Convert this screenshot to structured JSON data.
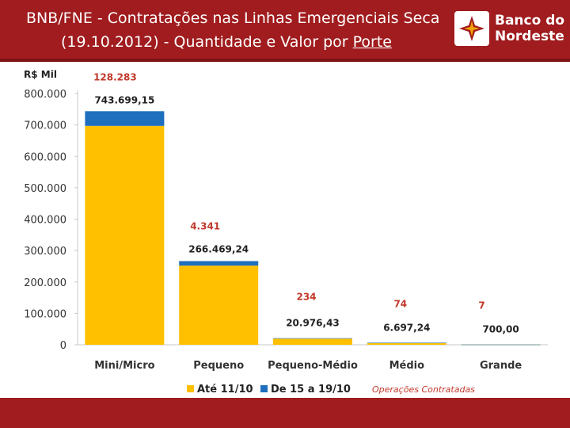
{
  "header": {
    "title_line1": "BNB/FNE - Contratações nas Linhas Emergenciais Seca",
    "title_line2_prefix": "(19.10.2012)  - Quantidade e Valor por ",
    "title_line2_underlined": "Porte",
    "logo_line1": "Banco do",
    "logo_line2": "Nordeste"
  },
  "colors": {
    "brand_red": "#a01c1e",
    "series_1": "#ffc000",
    "series_2": "#1f6fbf",
    "count_label": "#c0392b"
  },
  "note": "Operações Contratadas",
  "chart_data": {
    "type": "bar",
    "stacked": true,
    "title": "BNB/FNE - Contratações nas Linhas Emergenciais Seca (19.10.2012) - Quantidade e Valor por Porte",
    "ylabel": "R$ Mil",
    "xlabel": "",
    "ylim": [
      0,
      800000
    ],
    "yticks": [
      0,
      100000,
      200000,
      300000,
      400000,
      500000,
      600000,
      700000,
      800000
    ],
    "ytick_labels": [
      "0",
      "100.000",
      "200.000",
      "300.000",
      "400.000",
      "500.000",
      "600.000",
      "700.000",
      "800.000"
    ],
    "categories": [
      "Mini/Micro",
      "Pequeno",
      "Pequeno-Médio",
      "Médio",
      "Grande"
    ],
    "series": [
      {
        "name": "Até 11/10",
        "values": [
          697000,
          252000,
          19500,
          6200,
          650
        ]
      },
      {
        "name": "De 15 a 19/10",
        "values": [
          46699.15,
          14469.24,
          1476.43,
          497.24,
          50
        ]
      }
    ],
    "totals": [
      743699.15,
      266469.24,
      20976.43,
      6697.24,
      700
    ],
    "total_labels": [
      "743.699,15",
      "266.469,24",
      "20.976,43",
      "6.697,24",
      "700,00"
    ],
    "counts": [
      128283,
      4341,
      234,
      74,
      7
    ],
    "count_labels": [
      "128.283",
      "4.341",
      "234",
      "74",
      "7"
    ],
    "legend": [
      "Até 11/10",
      "De 15 a 19/10"
    ],
    "legend_position": "bottom",
    "grid": false
  }
}
